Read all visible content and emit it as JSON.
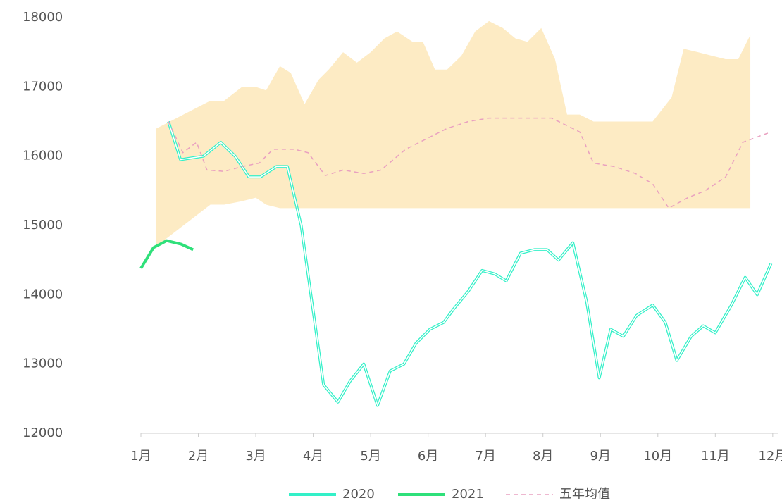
{
  "chart_data": {
    "type": "line",
    "xlim": [
      1,
      12.1
    ],
    "xticks": [
      {
        "value": 1,
        "label": "1月"
      },
      {
        "value": 2,
        "label": "2月"
      },
      {
        "value": 3,
        "label": "3月"
      },
      {
        "value": 4,
        "label": "4月"
      },
      {
        "value": 5,
        "label": "5月"
      },
      {
        "value": 6,
        "label": "6月"
      },
      {
        "value": 7,
        "label": "7月"
      },
      {
        "value": 8,
        "label": "8月"
      },
      {
        "value": 9,
        "label": "9月"
      },
      {
        "value": 10,
        "label": "10月"
      },
      {
        "value": 11,
        "label": "11月"
      },
      {
        "value": 12,
        "label": "12月"
      }
    ],
    "ylim": [
      12000,
      18000
    ],
    "yticks": [
      12000,
      13000,
      14000,
      15000,
      16000,
      17000,
      18000
    ],
    "band": {
      "color": "#fdebc4",
      "x": [
        1.27,
        2.21,
        2.45,
        2.76,
        3.0,
        3.18,
        3.42,
        3.61,
        3.85,
        4.09,
        4.27,
        4.52,
        4.76,
        5.0,
        5.24,
        5.46,
        5.73,
        5.91,
        6.12,
        6.33,
        6.58,
        6.82,
        7.06,
        7.3,
        7.52,
        7.73,
        7.97,
        8.21,
        8.42,
        8.64,
        8.88,
        9.91,
        10.24,
        10.45,
        10.7,
        10.94,
        11.18,
        11.4,
        11.61
      ],
      "upper": [
        16400,
        16800,
        16800,
        17000,
        17000,
        16950,
        17300,
        17200,
        16750,
        17100,
        17250,
        17500,
        17350,
        17500,
        17700,
        17800,
        17650,
        17650,
        17250,
        17250,
        17450,
        17800,
        17950,
        17850,
        17700,
        17650,
        17850,
        17400,
        16600,
        16600,
        16500,
        16500,
        16850,
        17550,
        17500,
        17450,
        17400,
        17400,
        17750
      ],
      "lower": [
        14700,
        15300,
        15300,
        15350,
        15400,
        15300,
        15250,
        15250,
        15250,
        15250,
        15250,
        15250,
        15250,
        15250,
        15250,
        15250,
        15250,
        15250,
        15250,
        15250,
        15250,
        15250,
        15250,
        15250,
        15250,
        15250,
        15250,
        15250,
        15250,
        15250,
        15250,
        15250,
        15250,
        15250,
        15250,
        15250,
        15250,
        15250,
        15250
      ]
    },
    "series": [
      {
        "name": "2020",
        "color": "#33f0c8",
        "style": "double",
        "x": [
          1.48,
          1.69,
          2.09,
          2.39,
          2.64,
          2.88,
          3.08,
          3.36,
          3.55,
          3.79,
          4.18,
          4.43,
          4.64,
          4.88,
          5.12,
          5.34,
          5.58,
          5.79,
          6.03,
          6.27,
          6.45,
          6.7,
          6.94,
          7.16,
          7.36,
          7.61,
          7.85,
          8.07,
          8.27,
          8.52,
          8.76,
          8.98,
          9.18,
          9.4,
          9.63,
          9.91,
          10.13,
          10.33,
          10.58,
          10.79,
          11.0,
          11.28,
          11.52,
          11.73,
          11.97
        ],
        "values": [
          16500,
          15950,
          16000,
          16200,
          16000,
          15700,
          15700,
          15850,
          15850,
          15000,
          12700,
          12450,
          12750,
          13000,
          12400,
          12900,
          13000,
          13300,
          13500,
          13600,
          13800,
          14050,
          14350,
          14300,
          14200,
          14600,
          14650,
          14650,
          14500,
          14750,
          13900,
          12800,
          13500,
          13400,
          13700,
          13850,
          13600,
          13050,
          13400,
          13550,
          13450,
          13850,
          14250,
          14000,
          14450
        ]
      },
      {
        "name": "2021",
        "color": "#2fe07a",
        "style": "solid",
        "x": [
          1.0,
          1.22,
          1.45,
          1.7,
          1.91
        ],
        "values": [
          14380,
          14680,
          14780,
          14730,
          14650
        ]
      },
      {
        "name": "五年均值",
        "color": "#e9a0c0",
        "style": "dashed",
        "x": [
          1.48,
          1.73,
          1.97,
          2.15,
          2.45,
          2.76,
          3.06,
          3.3,
          3.67,
          3.91,
          4.21,
          4.52,
          4.88,
          5.18,
          5.61,
          5.97,
          6.33,
          6.7,
          7.06,
          7.55,
          8.15,
          8.64,
          8.88,
          9.24,
          9.61,
          9.91,
          10.19,
          10.52,
          10.82,
          11.18,
          11.48,
          11.97
        ],
        "values": [
          16500,
          16050,
          16200,
          15800,
          15780,
          15850,
          15900,
          16100,
          16100,
          16050,
          15720,
          15800,
          15750,
          15800,
          16100,
          16250,
          16400,
          16500,
          16550,
          16550,
          16550,
          16350,
          15900,
          15850,
          15750,
          15600,
          15250,
          15400,
          15500,
          15700,
          16200,
          16350
        ]
      }
    ]
  }
}
